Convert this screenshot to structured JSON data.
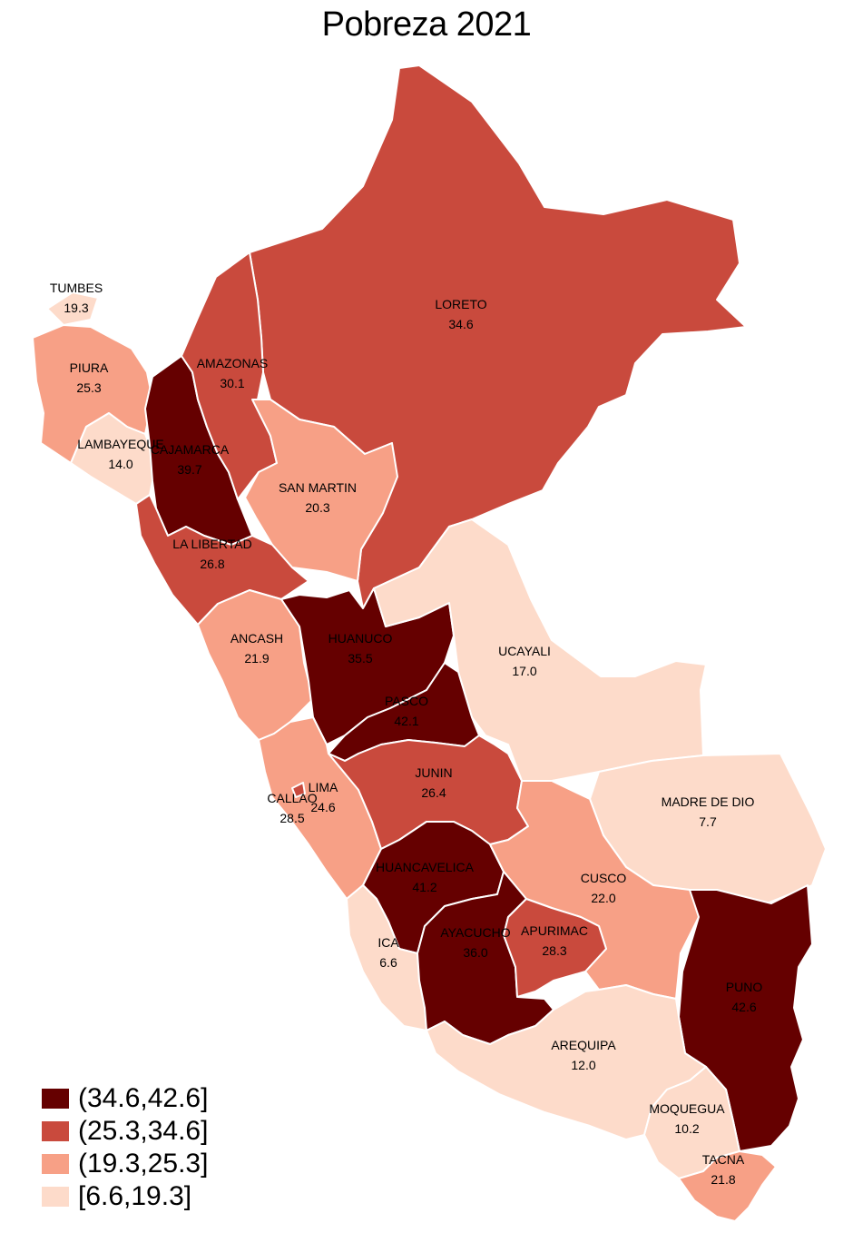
{
  "title": "Pobreza 2021",
  "colors": {
    "c1": "#650000",
    "c2": "#c94a3d",
    "c3": "#f7a086",
    "c4": "#fddbca"
  },
  "legend": [
    {
      "label": "(34.6,42.6]",
      "color": "#650000"
    },
    {
      "label": "(25.3,34.6]",
      "color": "#c94a3d"
    },
    {
      "label": "(19.3,25.3]",
      "color": "#f7a086"
    },
    {
      "label": "[6.6,19.3]",
      "color": "#fddbca"
    }
  ],
  "regions": [
    {
      "id": "tumbes",
      "name": "TUMBES",
      "value": "19.3"
    },
    {
      "id": "piura",
      "name": "PIURA",
      "value": "25.3"
    },
    {
      "id": "lambayeque",
      "name": "LAMBAYEQUE",
      "value": "14.0"
    },
    {
      "id": "cajamarca",
      "name": "CAJAMARCA",
      "value": "39.7"
    },
    {
      "id": "amazonas",
      "name": "AMAZONAS",
      "value": "30.1"
    },
    {
      "id": "loreto",
      "name": "LORETO",
      "value": "34.6"
    },
    {
      "id": "sanmartin",
      "name": "SAN MARTIN",
      "value": "20.3"
    },
    {
      "id": "lalibertad",
      "name": "LA LIBERTAD",
      "value": "26.8"
    },
    {
      "id": "ancash",
      "name": "ANCASH",
      "value": "21.9"
    },
    {
      "id": "huanuco",
      "name": "HUANUCO",
      "value": "35.5"
    },
    {
      "id": "ucayali",
      "name": "UCAYALI",
      "value": "17.0"
    },
    {
      "id": "pasco",
      "name": "PASCO",
      "value": "42.1"
    },
    {
      "id": "lima",
      "name": "LIMA",
      "value": "24.6"
    },
    {
      "id": "callao",
      "name": "CALLAO",
      "value": "28.5"
    },
    {
      "id": "junin",
      "name": "JUNIN",
      "value": "26.4"
    },
    {
      "id": "madrededios",
      "name": "MADRE DE DIO",
      "value": "7.7"
    },
    {
      "id": "huancavelica",
      "name": "HUANCAVELICA",
      "value": "41.2"
    },
    {
      "id": "cusco",
      "name": "CUSCO",
      "value": "22.0"
    },
    {
      "id": "ica",
      "name": "ICA",
      "value": "6.6"
    },
    {
      "id": "ayacucho",
      "name": "AYACUCHO",
      "value": "36.0"
    },
    {
      "id": "apurimac",
      "name": "APURIMAC",
      "value": "28.3"
    },
    {
      "id": "puno",
      "name": "PUNO",
      "value": "42.6"
    },
    {
      "id": "arequipa",
      "name": "AREQUIPA",
      "value": "12.0"
    },
    {
      "id": "moquegua",
      "name": "MOQUEGUA",
      "value": "10.2"
    },
    {
      "id": "tacna",
      "name": "TACNA",
      "value": "21.8"
    }
  ]
}
